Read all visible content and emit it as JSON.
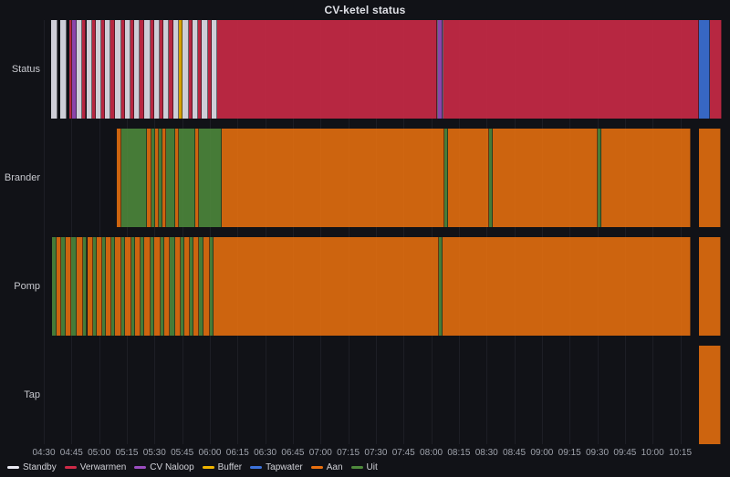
{
  "title": "CV-ketel status",
  "chart_data": {
    "type": "state-timeline",
    "title": "CV-ketel status",
    "x_start_min": 270,
    "x_end_min": 638,
    "tick_start_min": 270,
    "tick_step_min": 15,
    "tick_labels": [
      "04:30",
      "04:45",
      "05:00",
      "05:15",
      "05:30",
      "05:45",
      "06:00",
      "06:15",
      "06:30",
      "06:45",
      "07:00",
      "07:15",
      "07:30",
      "07:45",
      "08:00",
      "08:15",
      "08:30",
      "08:45",
      "09:00",
      "09:15",
      "09:30",
      "09:45",
      "10:00",
      "10:15"
    ],
    "legend_position": "bottom",
    "grid": "vertical",
    "legend": [
      {
        "label": "Standby",
        "color": "#E9E9F2"
      },
      {
        "label": "Verwarmen",
        "color": "#CE2A47"
      },
      {
        "label": "CV Naloop",
        "color": "#9B4DC0"
      },
      {
        "label": "Buffer",
        "color": "#EFB400"
      },
      {
        "label": "Tapwater",
        "color": "#3D73DB"
      },
      {
        "label": "Aan",
        "color": "#E8700F"
      },
      {
        "label": "Uit",
        "color": "#4E8A3C"
      }
    ],
    "rows": [
      {
        "label": "Status",
        "segments": [
          {
            "state": "Standby",
            "from": 274,
            "to": 277.5
          },
          {
            "state": "Standby",
            "from": 279,
            "to": 282.5
          },
          {
            "state": "Verwarmen",
            "from": 284,
            "to": 285.5
          },
          {
            "state": "CV Naloop",
            "from": 285.5,
            "to": 288
          },
          {
            "state": "Standby",
            "from": 288,
            "to": 291
          },
          {
            "state": "Verwarmen",
            "from": 291,
            "to": 293
          },
          {
            "state": "Standby",
            "from": 293,
            "to": 296
          },
          {
            "state": "Verwarmen",
            "from": 296,
            "to": 298
          },
          {
            "state": "Standby",
            "from": 298,
            "to": 301
          },
          {
            "state": "Verwarmen",
            "from": 301,
            "to": 303
          },
          {
            "state": "Standby",
            "from": 303,
            "to": 306
          },
          {
            "state": "Verwarmen",
            "from": 306,
            "to": 308.5
          },
          {
            "state": "Standby",
            "from": 308.5,
            "to": 312
          },
          {
            "state": "Verwarmen",
            "from": 312,
            "to": 314
          },
          {
            "state": "Standby",
            "from": 314,
            "to": 317
          },
          {
            "state": "Verwarmen",
            "from": 317,
            "to": 319
          },
          {
            "state": "Standby",
            "from": 319,
            "to": 322
          },
          {
            "state": "Verwarmen",
            "from": 322,
            "to": 324.5
          },
          {
            "state": "Standby",
            "from": 324.5,
            "to": 328
          },
          {
            "state": "Verwarmen",
            "from": 328,
            "to": 330
          },
          {
            "state": "Standby",
            "from": 330,
            "to": 333
          },
          {
            "state": "Verwarmen",
            "from": 333,
            "to": 335
          },
          {
            "state": "Standby",
            "from": 335,
            "to": 338
          },
          {
            "state": "Verwarmen",
            "from": 338,
            "to": 340
          },
          {
            "state": "Standby",
            "from": 340,
            "to": 343
          },
          {
            "state": "Buffer",
            "from": 343,
            "to": 345
          },
          {
            "state": "Standby",
            "from": 345,
            "to": 348.5
          },
          {
            "state": "Verwarmen",
            "from": 348.5,
            "to": 350.5
          },
          {
            "state": "Standby",
            "from": 350.5,
            "to": 353.5
          },
          {
            "state": "Verwarmen",
            "from": 353.5,
            "to": 355.5
          },
          {
            "state": "Standby",
            "from": 355.5,
            "to": 359
          },
          {
            "state": "Verwarmen",
            "from": 359,
            "to": 361
          },
          {
            "state": "Standby",
            "from": 361,
            "to": 364
          },
          {
            "state": "Verwarmen",
            "from": 364,
            "to": 483
          },
          {
            "state": "Standby",
            "from": 483,
            "to": 483.8
          },
          {
            "state": "CV Naloop",
            "from": 483.8,
            "to": 486
          },
          {
            "state": "Standby",
            "from": 486,
            "to": 486.8
          },
          {
            "state": "Verwarmen",
            "from": 486.8,
            "to": 625
          },
          {
            "state": "Tapwater",
            "from": 625,
            "to": 631
          },
          {
            "state": "Verwarmen",
            "from": 631,
            "to": 637.3
          }
        ]
      },
      {
        "label": "Brander",
        "segments": [
          {
            "state": "Aan",
            "from": 309.5,
            "to": 312
          },
          {
            "state": "Uit",
            "from": 312,
            "to": 326
          },
          {
            "state": "Aan",
            "from": 326,
            "to": 328.5
          },
          {
            "state": "Uit",
            "from": 328.5,
            "to": 330.5
          },
          {
            "state": "Aan",
            "from": 330.5,
            "to": 332.5
          },
          {
            "state": "Uit",
            "from": 332.5,
            "to": 334.5
          },
          {
            "state": "Aan",
            "from": 334.5,
            "to": 336.5
          },
          {
            "state": "Uit",
            "from": 336.5,
            "to": 341
          },
          {
            "state": "Aan",
            "from": 341,
            "to": 343
          },
          {
            "state": "Uit",
            "from": 343,
            "to": 352
          },
          {
            "state": "Aan",
            "from": 352,
            "to": 354
          },
          {
            "state": "Uit",
            "from": 354,
            "to": 366.5
          },
          {
            "state": "Aan",
            "from": 366.5,
            "to": 487
          },
          {
            "state": "Uit",
            "from": 487,
            "to": 489
          },
          {
            "state": "Aan",
            "from": 489,
            "to": 511.5
          },
          {
            "state": "Uit",
            "from": 511.5,
            "to": 513.5
          },
          {
            "state": "Aan",
            "from": 513.5,
            "to": 570
          },
          {
            "state": "Uit",
            "from": 570,
            "to": 572
          },
          {
            "state": "Aan",
            "from": 572,
            "to": 620.5
          },
          {
            "state": "Aan",
            "from": 625,
            "to": 637
          }
        ]
      },
      {
        "label": "Pomp",
        "segments": [
          {
            "state": "Uit",
            "from": 274.5,
            "to": 277
          },
          {
            "state": "Aan",
            "from": 277,
            "to": 279.5
          },
          {
            "state": "Uit",
            "from": 279.5,
            "to": 282
          },
          {
            "state": "Aan",
            "from": 282,
            "to": 285
          },
          {
            "state": "Uit",
            "from": 285,
            "to": 288
          },
          {
            "state": "Aan",
            "from": 288,
            "to": 291.5
          },
          {
            "state": "Uit",
            "from": 291.5,
            "to": 293.5
          },
          {
            "state": "Aan",
            "from": 293.5,
            "to": 296.5
          },
          {
            "state": "Uit",
            "from": 296.5,
            "to": 298.5
          },
          {
            "state": "Aan",
            "from": 298.5,
            "to": 301.5
          },
          {
            "state": "Uit",
            "from": 301.5,
            "to": 303.5
          },
          {
            "state": "Aan",
            "from": 303.5,
            "to": 306.5
          },
          {
            "state": "Uit",
            "from": 306.5,
            "to": 308.5
          },
          {
            "state": "Aan",
            "from": 308.5,
            "to": 312
          },
          {
            "state": "Uit",
            "from": 312,
            "to": 314
          },
          {
            "state": "Aan",
            "from": 314,
            "to": 317.5
          },
          {
            "state": "Uit",
            "from": 317.5,
            "to": 319.5
          },
          {
            "state": "Aan",
            "from": 319.5,
            "to": 322.5
          },
          {
            "state": "Uit",
            "from": 322.5,
            "to": 324.5
          },
          {
            "state": "Aan",
            "from": 324.5,
            "to": 328
          },
          {
            "state": "Uit",
            "from": 328,
            "to": 330
          },
          {
            "state": "Aan",
            "from": 330,
            "to": 333.5
          },
          {
            "state": "Uit",
            "from": 333.5,
            "to": 335.5
          },
          {
            "state": "Aan",
            "from": 335.5,
            "to": 338.5
          },
          {
            "state": "Uit",
            "from": 338.5,
            "to": 341
          },
          {
            "state": "Aan",
            "from": 341,
            "to": 344
          },
          {
            "state": "Uit",
            "from": 344,
            "to": 346
          },
          {
            "state": "Aan",
            "from": 346,
            "to": 349
          },
          {
            "state": "Uit",
            "from": 349,
            "to": 351
          },
          {
            "state": "Aan",
            "from": 351,
            "to": 354
          },
          {
            "state": "Uit",
            "from": 354,
            "to": 356.5
          },
          {
            "state": "Aan",
            "from": 356.5,
            "to": 360
          },
          {
            "state": "Uit",
            "from": 360,
            "to": 362
          },
          {
            "state": "Aan",
            "from": 362,
            "to": 484
          },
          {
            "state": "Uit",
            "from": 484,
            "to": 486
          },
          {
            "state": "Aan",
            "from": 486,
            "to": 620.5
          },
          {
            "state": "Aan",
            "from": 625,
            "to": 637
          }
        ]
      },
      {
        "label": "Tap",
        "segments": [
          {
            "state": "Aan",
            "from": 625,
            "to": 637
          }
        ]
      }
    ]
  }
}
